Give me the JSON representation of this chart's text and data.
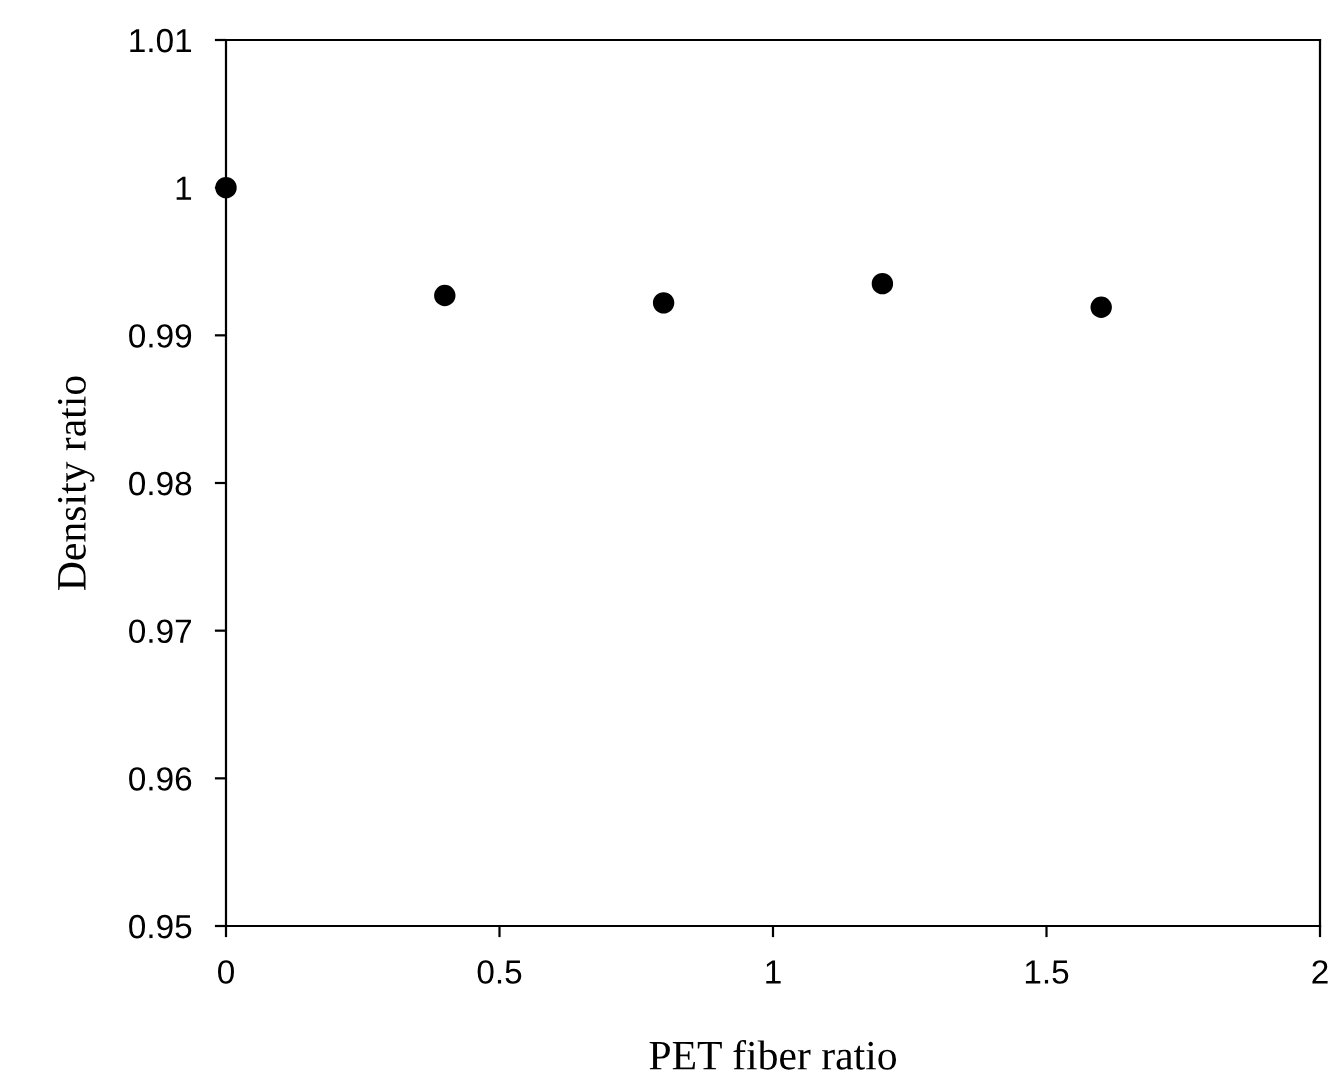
{
  "chart_data": {
    "type": "scatter",
    "xlabel": "PET fiber ratio",
    "ylabel": "Density ratio",
    "x": [
      0,
      0.4,
      0.8,
      1.2,
      1.6
    ],
    "series": [
      {
        "color": "#000000",
        "values": [
          1.0,
          0.9927,
          0.9922,
          0.9935,
          0.9919
        ]
      }
    ],
    "xlim": [
      0,
      2
    ],
    "xticks": [
      0,
      0.5,
      1,
      1.5,
      2
    ],
    "ylim": [
      0.95,
      1.01
    ],
    "yticks": [
      0.95,
      0.96,
      0.97,
      0.98,
      0.99,
      1,
      1.01
    ],
    "marker": "circle",
    "grid": false,
    "legend": false
  }
}
